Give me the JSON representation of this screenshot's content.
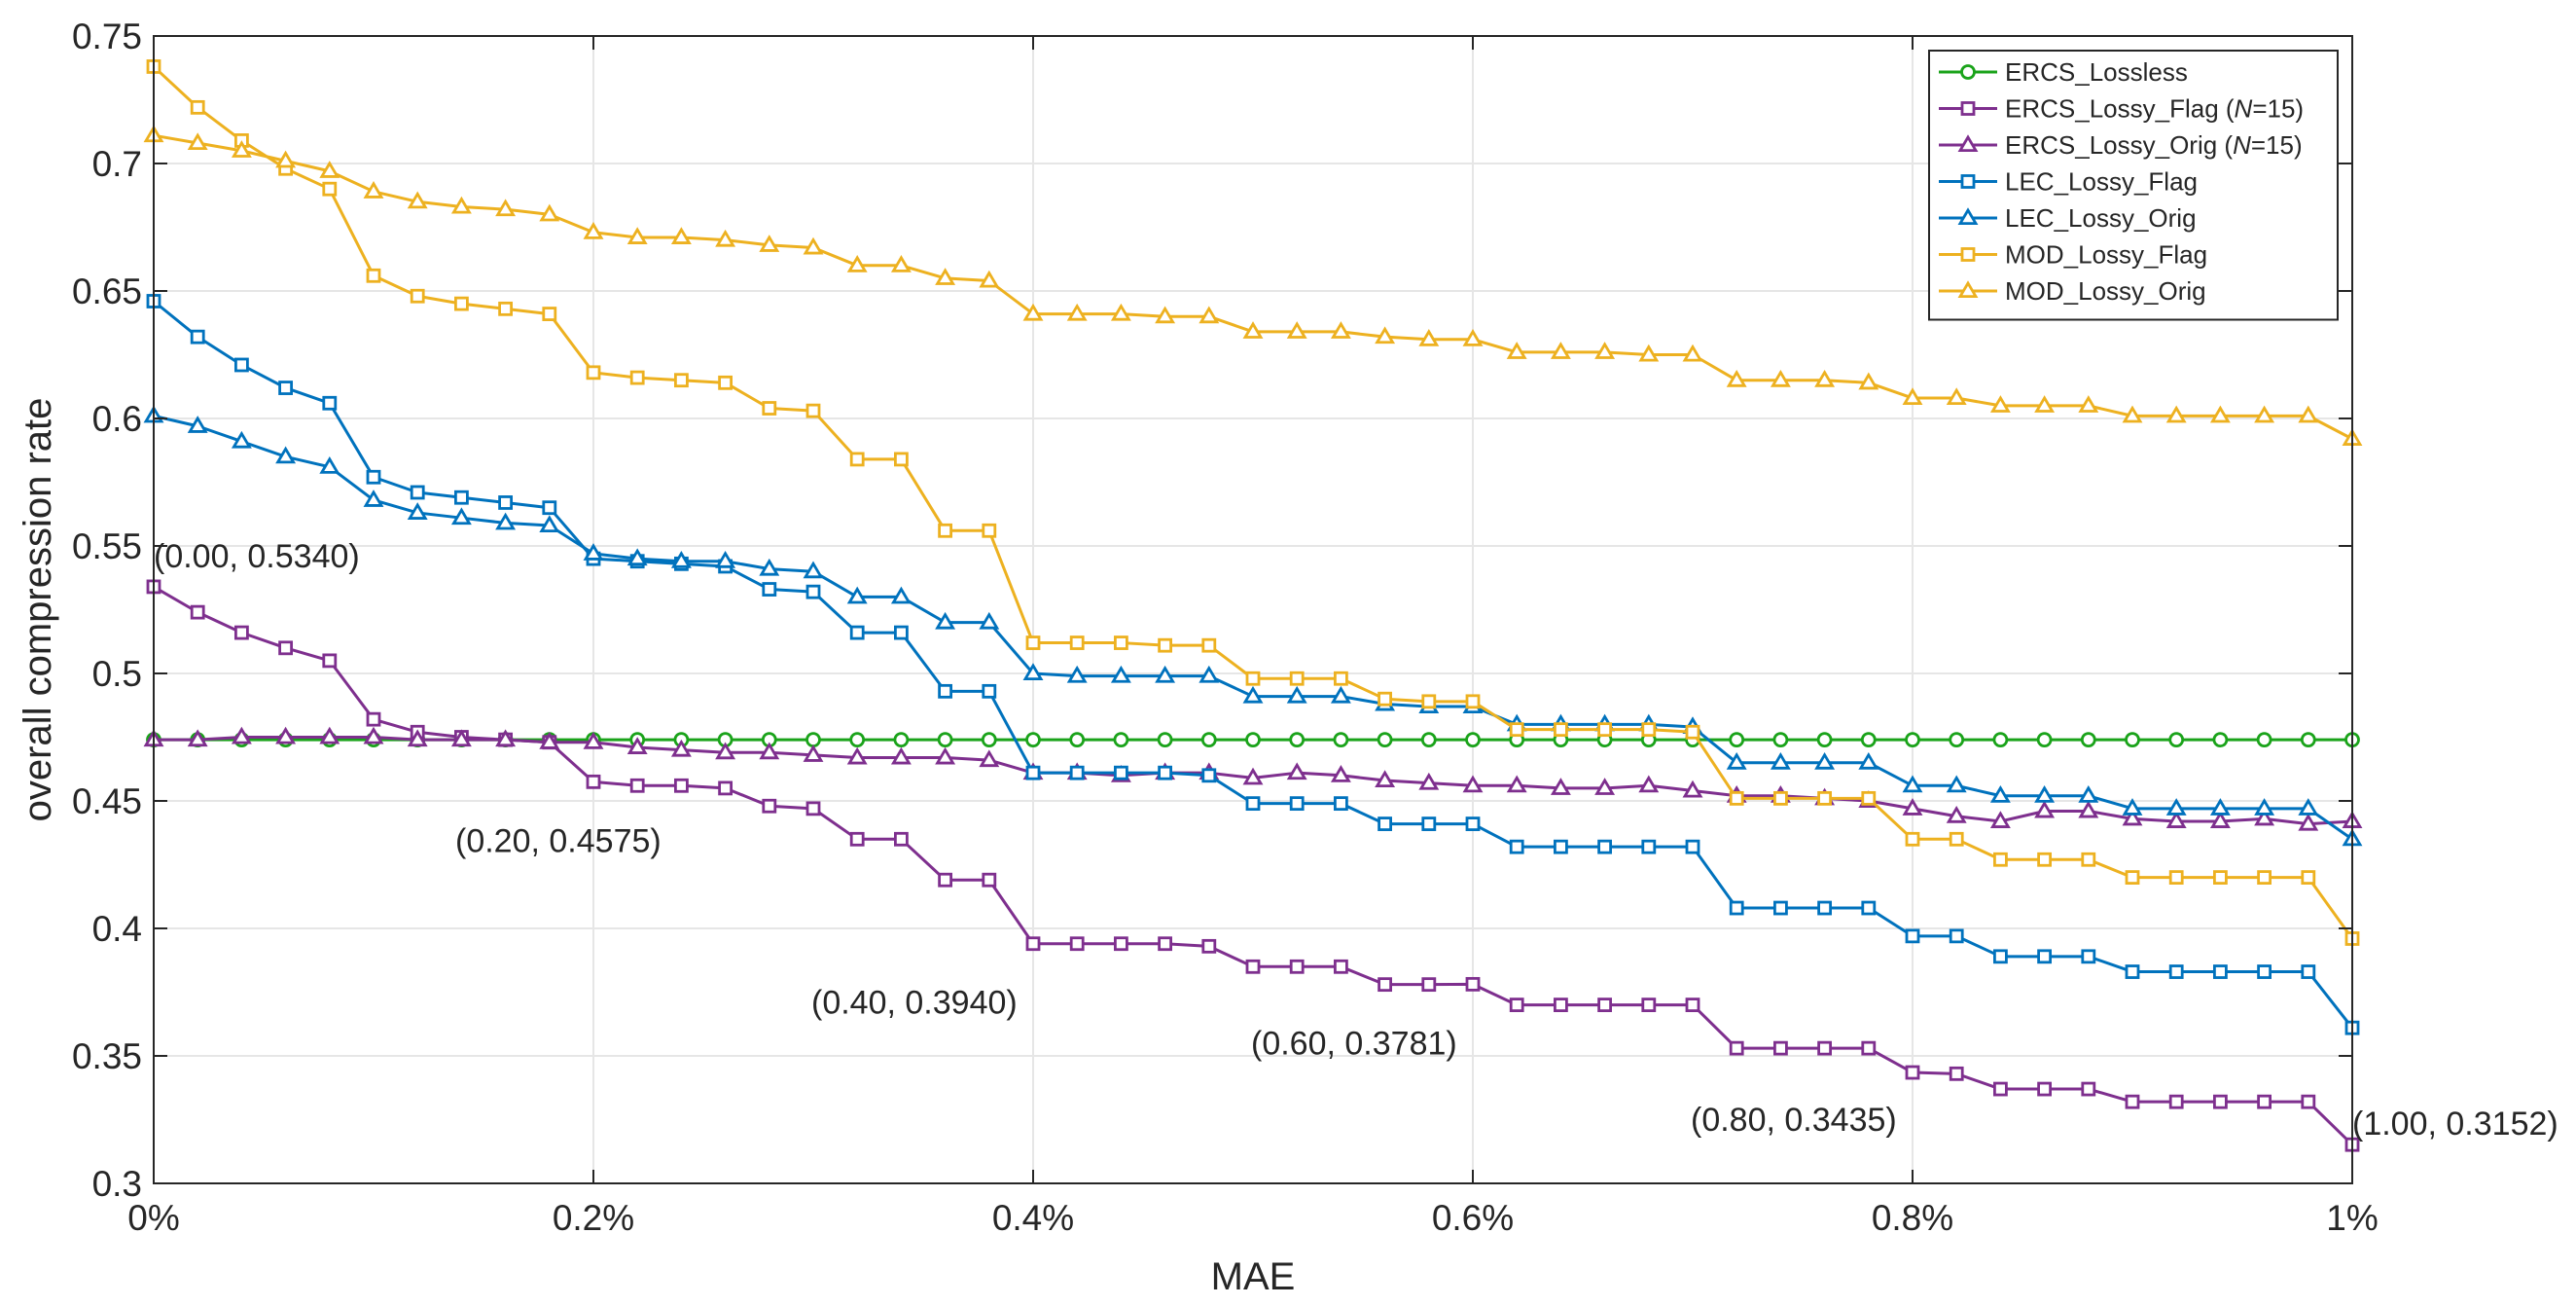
{
  "chart_data": {
    "type": "line",
    "title": "",
    "xlabel": "MAE",
    "ylabel": "overall compression rate",
    "xlim": [
      0,
      1
    ],
    "ylim": [
      0.3,
      0.75
    ],
    "grid": true,
    "legend_position": "top-right",
    "x_ticks": [
      0,
      0.2,
      0.4,
      0.6,
      0.8,
      1.0
    ],
    "x_tick_labels": [
      "0%",
      "0.2%",
      "0.4%",
      "0.6%",
      "0.8%",
      "1%"
    ],
    "y_ticks": [
      0.3,
      0.35,
      0.4,
      0.45,
      0.5,
      0.55,
      0.6,
      0.65,
      0.7,
      0.75
    ],
    "y_tick_labels": [
      "0.3",
      "0.35",
      "0.4",
      "0.45",
      "0.5",
      "0.55",
      "0.6",
      "0.65",
      "0.7",
      "0.75"
    ],
    "x": [
      0,
      0.02,
      0.04,
      0.06,
      0.08,
      0.1,
      0.12,
      0.14,
      0.16,
      0.18,
      0.2,
      0.22,
      0.24,
      0.26,
      0.28,
      0.3,
      0.32,
      0.34,
      0.36,
      0.38,
      0.4,
      0.42,
      0.44,
      0.46,
      0.48,
      0.5,
      0.52,
      0.54,
      0.56,
      0.58,
      0.6,
      0.62,
      0.64,
      0.66,
      0.68,
      0.7,
      0.72,
      0.74,
      0.76,
      0.78,
      0.8,
      0.82,
      0.84,
      0.86,
      0.88,
      0.9,
      0.92,
      0.94,
      0.96,
      0.98,
      1.0
    ],
    "series": [
      {
        "name": "ERCS_Lossless",
        "legend_label": "ERCS_Lossless",
        "legend_suffix": "",
        "color": "#1aa31a",
        "marker": "circle",
        "values": [
          0.474,
          0.474,
          0.474,
          0.474,
          0.474,
          0.474,
          0.474,
          0.474,
          0.474,
          0.474,
          0.474,
          0.474,
          0.474,
          0.474,
          0.474,
          0.474,
          0.474,
          0.474,
          0.474,
          0.474,
          0.474,
          0.474,
          0.474,
          0.474,
          0.474,
          0.474,
          0.474,
          0.474,
          0.474,
          0.474,
          0.474,
          0.474,
          0.474,
          0.474,
          0.474,
          0.474,
          0.474,
          0.474,
          0.474,
          0.474,
          0.474,
          0.474,
          0.474,
          0.474,
          0.474,
          0.474,
          0.474,
          0.474,
          0.474,
          0.474,
          0.474
        ]
      },
      {
        "name": "ERCS_Lossy_Flag (N=15)",
        "legend_label": "ERCS_Lossy_Flag (",
        "legend_suffix": "=15)",
        "color": "#7e2f8e",
        "marker": "square",
        "values": [
          0.534,
          0.524,
          0.516,
          0.51,
          0.505,
          0.482,
          0.477,
          0.475,
          0.474,
          0.473,
          0.4575,
          0.456,
          0.456,
          0.455,
          0.448,
          0.447,
          0.435,
          0.435,
          0.419,
          0.419,
          0.394,
          0.394,
          0.394,
          0.394,
          0.393,
          0.385,
          0.385,
          0.385,
          0.378,
          0.378,
          0.3781,
          0.37,
          0.37,
          0.37,
          0.37,
          0.37,
          0.353,
          0.353,
          0.353,
          0.353,
          0.3435,
          0.343,
          0.337,
          0.337,
          0.337,
          0.332,
          0.332,
          0.332,
          0.332,
          0.332,
          0.3152
        ]
      },
      {
        "name": "ERCS_Lossy_Orig (N=15)",
        "legend_label": "ERCS_Lossy_Orig (",
        "legend_suffix": "=15)",
        "color": "#7e2f8e",
        "marker": "triangle",
        "values": [
          0.474,
          0.474,
          0.475,
          0.475,
          0.475,
          0.475,
          0.474,
          0.474,
          0.474,
          0.473,
          0.473,
          0.471,
          0.47,
          0.469,
          0.469,
          0.468,
          0.467,
          0.467,
          0.467,
          0.466,
          0.461,
          0.461,
          0.46,
          0.461,
          0.461,
          0.459,
          0.461,
          0.46,
          0.458,
          0.457,
          0.456,
          0.456,
          0.455,
          0.455,
          0.456,
          0.454,
          0.452,
          0.452,
          0.451,
          0.45,
          0.447,
          0.444,
          0.442,
          0.446,
          0.446,
          0.443,
          0.442,
          0.442,
          0.443,
          0.441,
          0.442
        ]
      },
      {
        "name": "LEC_Lossy_Flag",
        "legend_label": "LEC_Lossy_Flag",
        "legend_suffix": "",
        "color": "#0072bd",
        "marker": "square",
        "values": [
          0.646,
          0.632,
          0.621,
          0.612,
          0.606,
          0.577,
          0.571,
          0.569,
          0.567,
          0.565,
          0.545,
          0.544,
          0.543,
          0.542,
          0.533,
          0.532,
          0.516,
          0.516,
          0.493,
          0.493,
          0.461,
          0.461,
          0.461,
          0.461,
          0.46,
          0.449,
          0.449,
          0.449,
          0.441,
          0.441,
          0.441,
          0.432,
          0.432,
          0.432,
          0.432,
          0.432,
          0.408,
          0.408,
          0.408,
          0.408,
          0.397,
          0.397,
          0.389,
          0.389,
          0.389,
          0.383,
          0.383,
          0.383,
          0.383,
          0.383,
          0.361
        ]
      },
      {
        "name": "LEC_Lossy_Orig",
        "legend_label": "LEC_Lossy_Orig",
        "legend_suffix": "",
        "color": "#0072bd",
        "marker": "triangle",
        "values": [
          0.601,
          0.597,
          0.591,
          0.585,
          0.581,
          0.568,
          0.563,
          0.561,
          0.559,
          0.558,
          0.547,
          0.545,
          0.544,
          0.544,
          0.541,
          0.54,
          0.53,
          0.53,
          0.52,
          0.52,
          0.5,
          0.499,
          0.499,
          0.499,
          0.499,
          0.491,
          0.491,
          0.491,
          0.488,
          0.487,
          0.487,
          0.48,
          0.48,
          0.48,
          0.48,
          0.479,
          0.465,
          0.465,
          0.465,
          0.465,
          0.456,
          0.456,
          0.452,
          0.452,
          0.452,
          0.447,
          0.447,
          0.447,
          0.447,
          0.447,
          0.435
        ]
      },
      {
        "name": "MOD_Lossy_Flag",
        "legend_label": "MOD_Lossy_Flag",
        "legend_suffix": "",
        "color": "#edb120",
        "marker": "square",
        "values": [
          0.738,
          0.722,
          0.709,
          0.698,
          0.69,
          0.656,
          0.648,
          0.645,
          0.643,
          0.641,
          0.618,
          0.616,
          0.615,
          0.614,
          0.604,
          0.603,
          0.584,
          0.584,
          0.556,
          0.556,
          0.512,
          0.512,
          0.512,
          0.511,
          0.511,
          0.498,
          0.498,
          0.498,
          0.49,
          0.489,
          0.489,
          0.478,
          0.478,
          0.478,
          0.478,
          0.477,
          0.451,
          0.451,
          0.451,
          0.451,
          0.435,
          0.435,
          0.427,
          0.427,
          0.427,
          0.42,
          0.42,
          0.42,
          0.42,
          0.42,
          0.396
        ]
      },
      {
        "name": "MOD_Lossy_Orig",
        "legend_label": "MOD_Lossy_Orig",
        "legend_suffix": "",
        "color": "#edb120",
        "marker": "triangle",
        "values": [
          0.711,
          0.708,
          0.705,
          0.701,
          0.697,
          0.689,
          0.685,
          0.683,
          0.682,
          0.68,
          0.673,
          0.671,
          0.671,
          0.67,
          0.668,
          0.667,
          0.66,
          0.66,
          0.655,
          0.654,
          0.641,
          0.641,
          0.641,
          0.64,
          0.64,
          0.634,
          0.634,
          0.634,
          0.632,
          0.631,
          0.631,
          0.626,
          0.626,
          0.626,
          0.625,
          0.625,
          0.615,
          0.615,
          0.615,
          0.614,
          0.608,
          0.608,
          0.605,
          0.605,
          0.605,
          0.601,
          0.601,
          0.601,
          0.601,
          0.601,
          0.592
        ]
      }
    ],
    "legend_italic_symbol": "N",
    "annotations": [
      {
        "text": "(0.00, 0.5340)",
        "x": 0.0,
        "y": 0.534
      },
      {
        "text": "(0.20, 0.4575)",
        "x": 0.2,
        "y": 0.4575
      },
      {
        "text": "(0.40, 0.3940)",
        "x": 0.4,
        "y": 0.394
      },
      {
        "text": "(0.60, 0.3781)",
        "x": 0.6,
        "y": 0.3781
      },
      {
        "text": "(0.80, 0.3435)",
        "x": 0.8,
        "y": 0.3435
      },
      {
        "text": "(1.00, 0.3152)",
        "x": 1.0,
        "y": 0.3152
      }
    ]
  }
}
